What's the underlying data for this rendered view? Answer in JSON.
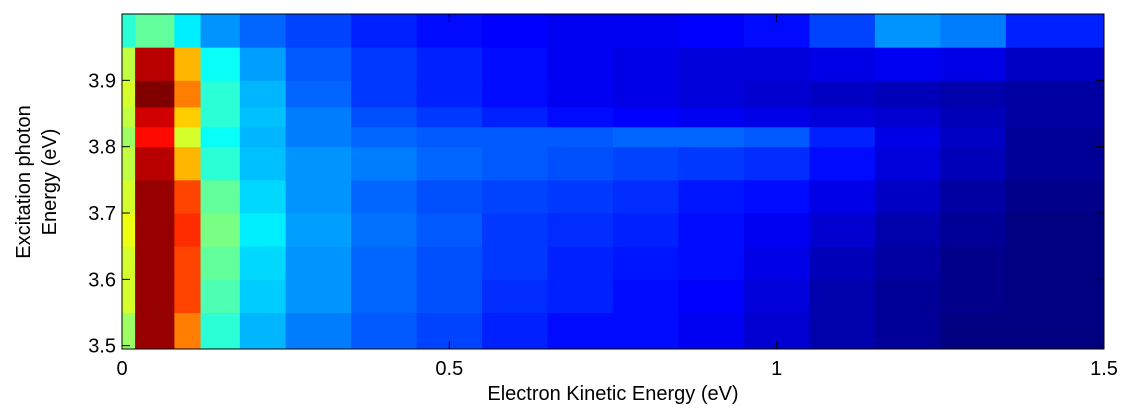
{
  "chart_data": {
    "type": "heatmap",
    "xlabel": "Electron Kinetic Energy (eV)",
    "ylabel": [
      "Excitation photon",
      "Energy (eV)"
    ],
    "colormap": "jet",
    "xbins": [
      0,
      0.02,
      0.08,
      0.12,
      0.18,
      0.25,
      0.35,
      0.45,
      0.55,
      0.65,
      0.75,
      0.85,
      0.95,
      1.05,
      1.15,
      1.25,
      1.35,
      1.5
    ],
    "ybins": [
      3.495,
      3.55,
      3.6,
      3.65,
      3.7,
      3.75,
      3.8,
      3.83,
      3.86,
      3.9,
      3.95,
      4.0
    ],
    "z": [
      [
        0.55,
        0.95,
        0.75,
        0.45,
        0.35,
        0.3,
        0.27,
        0.25,
        0.22,
        0.2,
        0.2,
        0.18,
        0.15,
        0.12,
        0.1,
        0.08,
        0.08
      ],
      [
        0.6,
        0.95,
        0.8,
        0.48,
        0.37,
        0.32,
        0.28,
        0.26,
        0.23,
        0.22,
        0.2,
        0.19,
        0.16,
        0.12,
        0.1,
        0.09,
        0.08
      ],
      [
        0.6,
        0.95,
        0.8,
        0.5,
        0.38,
        0.32,
        0.28,
        0.26,
        0.24,
        0.22,
        0.21,
        0.2,
        0.17,
        0.13,
        0.11,
        0.09,
        0.08
      ],
      [
        0.62,
        0.95,
        0.82,
        0.52,
        0.4,
        0.33,
        0.29,
        0.27,
        0.24,
        0.23,
        0.22,
        0.2,
        0.18,
        0.15,
        0.12,
        0.1,
        0.08
      ],
      [
        0.6,
        0.95,
        0.8,
        0.5,
        0.38,
        0.32,
        0.28,
        0.26,
        0.25,
        0.24,
        0.23,
        0.21,
        0.2,
        0.17,
        0.14,
        0.11,
        0.09
      ],
      [
        0.58,
        0.92,
        0.7,
        0.45,
        0.36,
        0.32,
        0.3,
        0.28,
        0.27,
        0.26,
        0.25,
        0.24,
        0.23,
        0.2,
        0.16,
        0.13,
        0.1
      ],
      [
        0.55,
        0.85,
        0.6,
        0.42,
        0.35,
        0.3,
        0.28,
        0.27,
        0.27,
        0.27,
        0.28,
        0.28,
        0.27,
        0.22,
        0.17,
        0.14,
        0.1
      ],
      [
        0.58,
        0.9,
        0.68,
        0.45,
        0.36,
        0.3,
        0.26,
        0.24,
        0.22,
        0.2,
        0.19,
        0.18,
        0.17,
        0.16,
        0.15,
        0.13,
        0.11
      ],
      [
        0.6,
        0.97,
        0.75,
        0.45,
        0.35,
        0.28,
        0.24,
        0.22,
        0.2,
        0.18,
        0.17,
        0.16,
        0.15,
        0.14,
        0.13,
        0.12,
        0.11
      ],
      [
        0.58,
        0.92,
        0.7,
        0.42,
        0.33,
        0.27,
        0.24,
        0.22,
        0.2,
        0.18,
        0.17,
        0.16,
        0.16,
        0.17,
        0.18,
        0.17,
        0.14
      ],
      [
        0.45,
        0.5,
        0.4,
        0.32,
        0.28,
        0.25,
        0.22,
        0.2,
        0.19,
        0.18,
        0.18,
        0.19,
        0.2,
        0.25,
        0.32,
        0.3,
        0.22
      ]
    ],
    "xlim": [
      0,
      1.5
    ],
    "xticks": [
      0,
      0.5,
      1,
      1.5
    ],
    "ylim": [
      3.495,
      4.0
    ],
    "yticks": [
      3.5,
      3.6,
      3.7,
      3.8,
      3.9
    ]
  }
}
